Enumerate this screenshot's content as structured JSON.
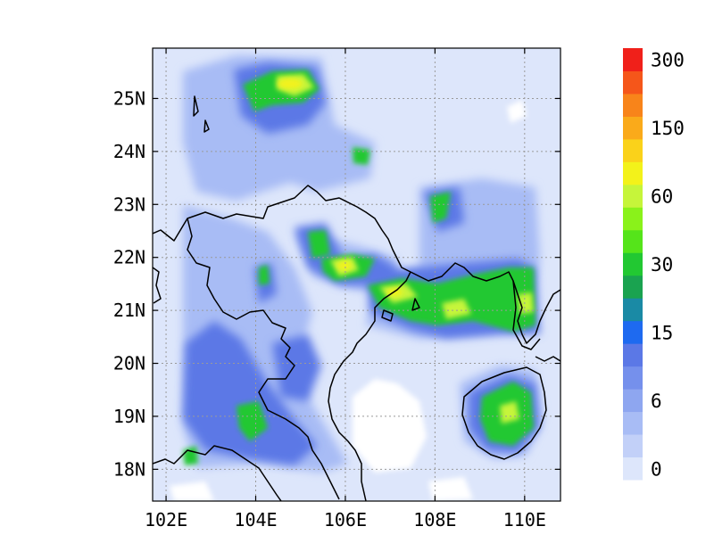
{
  "map": {
    "projection": "lat-lon",
    "lon_range": [
      101.7,
      110.8
    ],
    "lat_range": [
      17.4,
      25.95
    ],
    "lon_ticks": [
      {
        "value": 102,
        "label": "102E"
      },
      {
        "value": 104,
        "label": "104E"
      },
      {
        "value": 106,
        "label": "106E"
      },
      {
        "value": 108,
        "label": "108E"
      },
      {
        "value": 110,
        "label": "110E"
      }
    ],
    "lat_ticks": [
      {
        "value": 18,
        "label": "18N"
      },
      {
        "value": 19,
        "label": "19N"
      },
      {
        "value": 20,
        "label": "20N"
      },
      {
        "value": 21,
        "label": "21N"
      },
      {
        "value": 22,
        "label": "22N"
      },
      {
        "value": 23,
        "label": "23N"
      },
      {
        "value": 24,
        "label": "24N"
      },
      {
        "value": 25,
        "label": "25N"
      }
    ],
    "gridlines": "dotted"
  },
  "colorbar": {
    "colors": [
      "#dde6fb",
      "#c2d0f8",
      "#a8bcf5",
      "#8ea6f0",
      "#7590ec",
      "#5b78e6",
      "#1e6af0",
      "#1a8aa5",
      "#1aa350",
      "#22c832",
      "#55e41a",
      "#8af21a",
      "#c6f53a",
      "#f3f21a",
      "#fad21a",
      "#faaa1a",
      "#f8841a",
      "#f5561a",
      "#f0201a"
    ],
    "labels": [
      {
        "index": 0,
        "text": "0"
      },
      {
        "index": 3,
        "text": "6"
      },
      {
        "index": 6,
        "text": "15"
      },
      {
        "index": 9,
        "text": "30"
      },
      {
        "index": 12,
        "text": "60"
      },
      {
        "index": 15,
        "text": "150"
      },
      {
        "index": 18,
        "text": "300"
      }
    ]
  }
}
